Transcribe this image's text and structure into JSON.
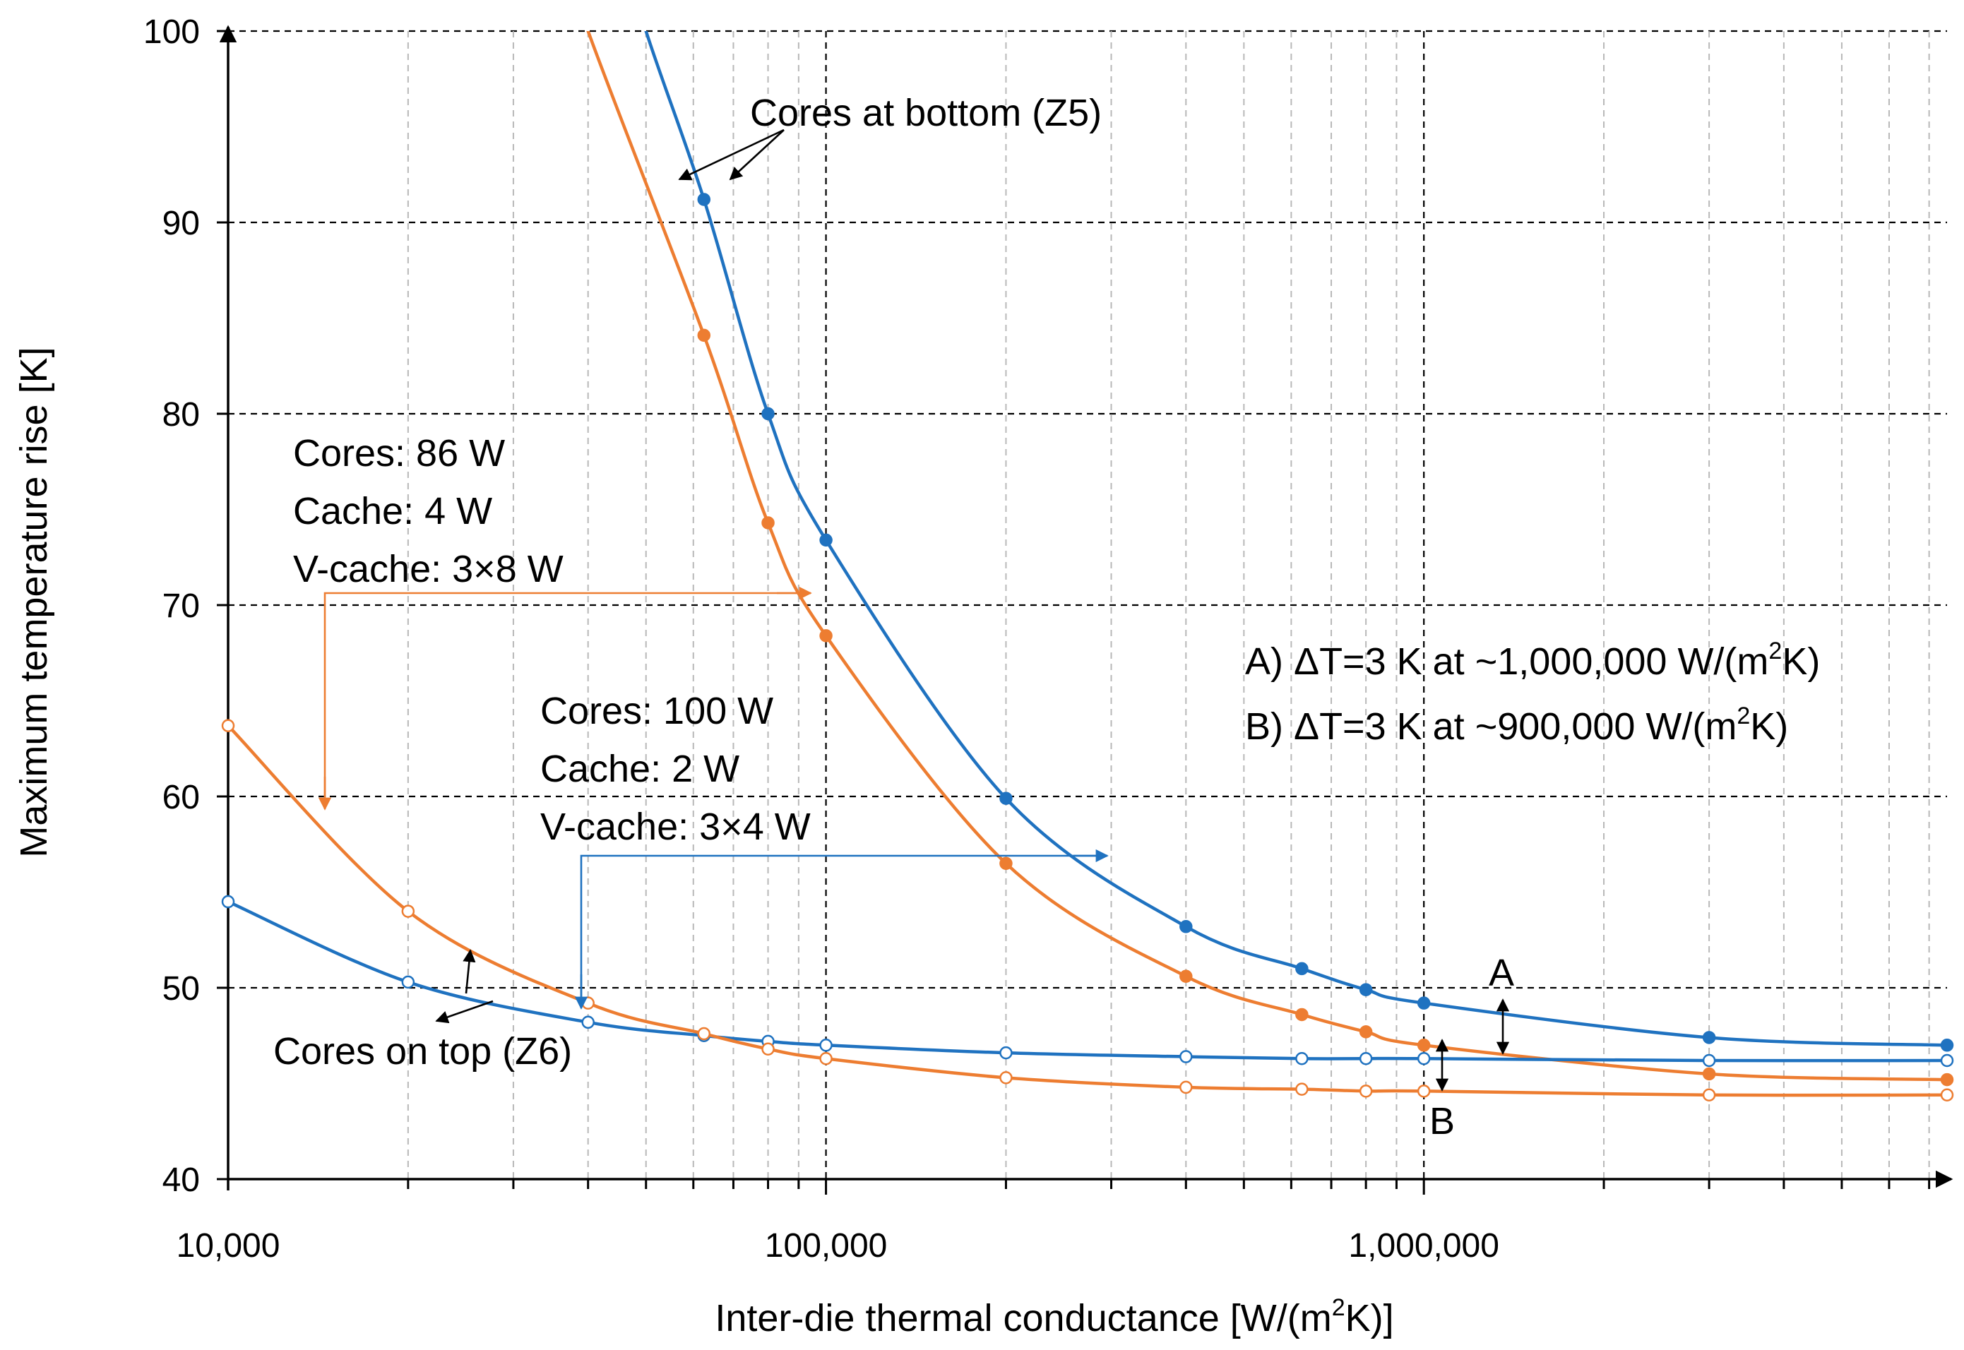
{
  "chart_data": {
    "type": "line",
    "xscale": "log",
    "xlim": [
      10000,
      7500000
    ],
    "ylim": [
      40,
      100
    ],
    "xlabel": "Inter-die thermal conductance [W/(m2K)]",
    "xlabel_parts": [
      "Inter-die thermal conductance [W/(m",
      "2",
      "K)]"
    ],
    "ylabel": "Maximum temperature rise [K]",
    "x_tick_labels": [
      {
        "value": 10000,
        "label": "10,000"
      },
      {
        "value": 100000,
        "label": "100,000"
      },
      {
        "value": 1000000,
        "label": "1,000,000"
      }
    ],
    "y_ticks": [
      40,
      50,
      60,
      70,
      80,
      90,
      100
    ],
    "colors": {
      "blue": "#1f72c0",
      "orange": "#ed7d31",
      "axis": "#000000"
    },
    "series": [
      {
        "name": "Cores at bottom (Z5) - case 2 (blue)",
        "color": "#1f72c0",
        "marker": "filled",
        "x": [
          62500,
          80000,
          100000,
          200000,
          400000,
          625000,
          800000,
          1000000,
          3000000,
          7500000
        ],
        "y": [
          91.2,
          80.0,
          73.4,
          59.9,
          53.2,
          51.0,
          49.9,
          49.2,
          47.4,
          47.0
        ]
      },
      {
        "name": "Cores at bottom (Z5) - case 1 (orange)",
        "color": "#ed7d31",
        "marker": "filled",
        "x": [
          62500,
          80000,
          100000,
          200000,
          400000,
          625000,
          800000,
          1000000,
          3000000,
          7500000
        ],
        "y": [
          84.1,
          74.3,
          68.4,
          56.5,
          50.6,
          48.6,
          47.7,
          47.0,
          45.5,
          45.2
        ]
      },
      {
        "name": "Cores on top (Z6) - case 2 (blue)",
        "color": "#1f72c0",
        "marker": "open",
        "x": [
          10000,
          20000,
          40000,
          62500,
          80000,
          100000,
          200000,
          400000,
          625000,
          800000,
          1000000,
          3000000,
          7500000
        ],
        "y": [
          54.5,
          50.3,
          48.2,
          47.5,
          47.2,
          47.0,
          46.6,
          46.4,
          46.3,
          46.3,
          46.3,
          46.2,
          46.2
        ]
      },
      {
        "name": "Cores on top (Z6) - case 1 (orange)",
        "color": "#ed7d31",
        "marker": "open",
        "x": [
          10000,
          20000,
          40000,
          62500,
          80000,
          100000,
          200000,
          400000,
          625000,
          800000,
          1000000,
          3000000,
          7500000
        ],
        "y": [
          63.7,
          54.0,
          49.2,
          47.6,
          46.8,
          46.3,
          45.3,
          44.8,
          44.7,
          44.6,
          44.6,
          44.4,
          44.4
        ]
      }
    ],
    "annotations": {
      "cores_bottom": "Cores at bottom (Z5)",
      "cores_top": "Cores on top (Z6)",
      "case1": [
        "Cores: 86 W",
        "Cache: 4 W",
        "V-cache: 3×8 W"
      ],
      "case2": [
        "Cores: 100 W",
        "Cache: 2 W",
        "V-cache: 3×4 W"
      ],
      "note_a": {
        "prefix": "A) ΔT=3 K at ~1,000,000 W/(m",
        "sup": "2",
        "suffix": "K)"
      },
      "note_b": {
        "prefix": "B) ΔT=3 K at ~900,000 W/(m",
        "sup": "2",
        "suffix": "K)"
      },
      "marker_a": "A",
      "marker_b": "B"
    }
  }
}
